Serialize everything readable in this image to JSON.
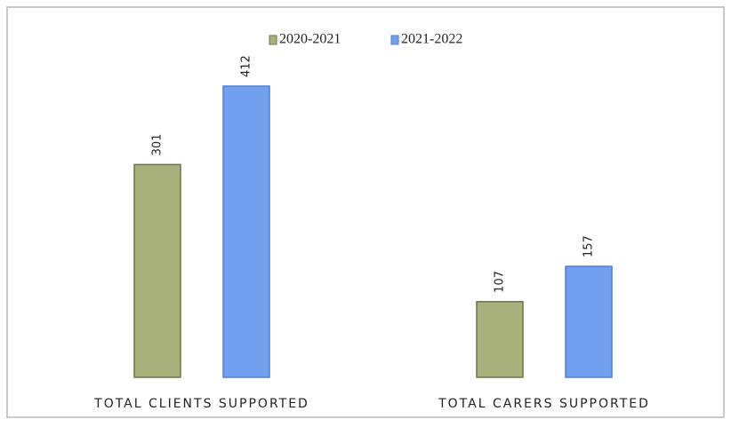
{
  "chart_data": {
    "type": "bar",
    "categories": [
      "TOTAL CLIENTS SUPPORTED",
      "TOTAL CARERS SUPPORTED"
    ],
    "series": [
      {
        "name": "2020-2021",
        "color": "#a9b27c",
        "values": [
          301,
          107
        ]
      },
      {
        "name": "2021-2022",
        "color": "#72a0ee",
        "values": [
          412,
          157
        ]
      }
    ],
    "legend": "top"
  }
}
